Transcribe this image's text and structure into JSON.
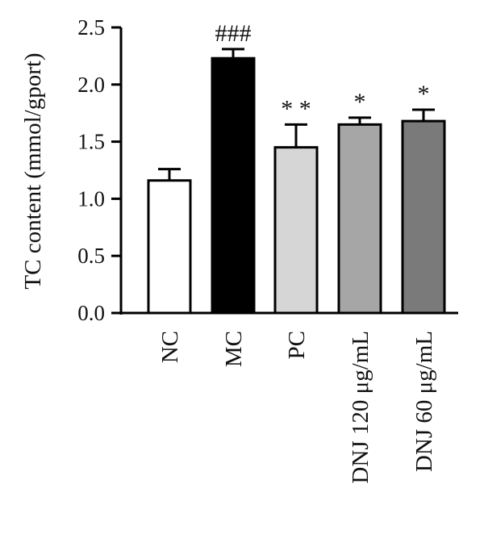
{
  "chart_data": {
    "type": "bar",
    "title": "",
    "xlabel": "",
    "ylabel": "TC content (mmol/gport)",
    "ylim": [
      0,
      2.5
    ],
    "yticks": [
      "0.0",
      "0.5",
      "1.0",
      "1.5",
      "2.0",
      "2.5"
    ],
    "categories": [
      "NC",
      "MC",
      "PC",
      "DNJ 120 μg/mL",
      "DNJ 60 μg/mL"
    ],
    "values": [
      1.16,
      2.23,
      1.45,
      1.65,
      1.68
    ],
    "errors": [
      0.1,
      0.08,
      0.2,
      0.06,
      0.1
    ],
    "annotations": [
      "",
      "###",
      "* *",
      "*",
      "*"
    ],
    "colors": [
      "#ffffff",
      "#000000",
      "#d6d6d6",
      "#a6a6a6",
      "#7a7a7a"
    ],
    "grid": false
  }
}
